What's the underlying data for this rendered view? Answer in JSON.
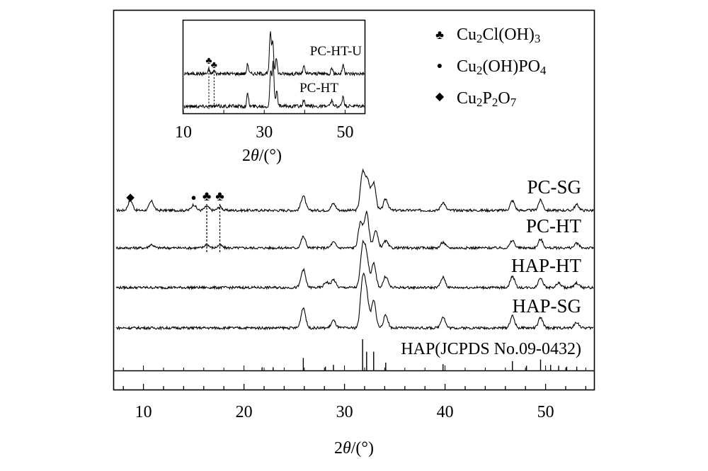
{
  "chart_data": {
    "type": "line",
    "xlabel": "2θ/(°)",
    "ylabel": "",
    "xlim": [
      7,
      55
    ],
    "xticks": [
      10,
      20,
      30,
      40,
      50
    ],
    "legend": {
      "placement": "top-right",
      "entries": [
        {
          "symbol": "♣",
          "label": "Cu2Cl(OH)3"
        },
        {
          "symbol": "●",
          "label": "Cu2(OH)PO4"
        },
        {
          "symbol": "◆",
          "label": "Cu2P2O7"
        }
      ]
    },
    "series": [
      {
        "name": "PC-SG",
        "peaks": [
          [
            8.7,
            0.18
          ],
          [
            10.8,
            0.16
          ],
          [
            15.0,
            0.1
          ],
          [
            16.3,
            0.07
          ],
          [
            17.6,
            0.06
          ],
          [
            25.9,
            0.26
          ],
          [
            28.9,
            0.12
          ],
          [
            31.8,
            0.66
          ],
          [
            32.3,
            0.52
          ],
          [
            32.9,
            0.48
          ],
          [
            34.1,
            0.2
          ],
          [
            39.8,
            0.14
          ],
          [
            46.7,
            0.17
          ],
          [
            49.5,
            0.18
          ],
          [
            53.1,
            0.1
          ]
        ]
      },
      {
        "name": "PC-HT",
        "peaks": [
          [
            10.8,
            0.06
          ],
          [
            16.3,
            0.06
          ],
          [
            17.6,
            0.05
          ],
          [
            25.9,
            0.2
          ],
          [
            28.9,
            0.1
          ],
          [
            31.6,
            0.45
          ],
          [
            32.2,
            0.62
          ],
          [
            33.1,
            0.3
          ],
          [
            34.1,
            0.12
          ],
          [
            39.8,
            0.1
          ],
          [
            46.7,
            0.13
          ],
          [
            49.5,
            0.15
          ],
          [
            53.1,
            0.08
          ]
        ]
      },
      {
        "name": "HAP-HT",
        "peaks": [
          [
            25.9,
            0.32
          ],
          [
            28.2,
            0.1
          ],
          [
            28.9,
            0.14
          ],
          [
            31.8,
            0.68
          ],
          [
            32.2,
            0.52
          ],
          [
            32.9,
            0.42
          ],
          [
            34.1,
            0.2
          ],
          [
            39.8,
            0.18
          ],
          [
            46.7,
            0.2
          ],
          [
            49.5,
            0.18
          ],
          [
            51.3,
            0.08
          ],
          [
            53.1,
            0.08
          ]
        ]
      },
      {
        "name": "HAP-SG",
        "peaks": [
          [
            25.9,
            0.36
          ],
          [
            28.9,
            0.13
          ],
          [
            31.8,
            0.82
          ],
          [
            32.2,
            0.56
          ],
          [
            32.9,
            0.48
          ],
          [
            34.1,
            0.22
          ],
          [
            39.8,
            0.2
          ],
          [
            46.7,
            0.21
          ],
          [
            49.5,
            0.18
          ],
          [
            53.1,
            0.1
          ]
        ]
      }
    ],
    "reference": {
      "name": "HAP(JCPDS No.09-0432)",
      "lines": [
        [
          21.8,
          0.1
        ],
        [
          22.9,
          0.1
        ],
        [
          25.9,
          0.4
        ],
        [
          28.1,
          0.12
        ],
        [
          28.9,
          0.18
        ],
        [
          31.8,
          1.0
        ],
        [
          32.2,
          0.6
        ],
        [
          32.9,
          0.6
        ],
        [
          34.1,
          0.25
        ],
        [
          39.8,
          0.2
        ],
        [
          46.7,
          0.3
        ],
        [
          48.1,
          0.15
        ],
        [
          49.5,
          0.35
        ],
        [
          50.5,
          0.18
        ],
        [
          51.3,
          0.15
        ],
        [
          52.1,
          0.12
        ],
        [
          53.1,
          0.12
        ]
      ]
    },
    "markers": [
      {
        "series": "PC-SG",
        "symbol": "◆",
        "x": 8.7
      },
      {
        "series": "PC-SG",
        "symbol": "●",
        "x": 15.0
      },
      {
        "series": "PC-SG",
        "symbol": "♣",
        "x": 16.3
      },
      {
        "series": "PC-SG",
        "symbol": "♣",
        "x": 17.6
      }
    ],
    "inset": {
      "xlabel": "2θ/(°)",
      "xlim": [
        10,
        55
      ],
      "xticks": [
        10,
        30,
        50
      ],
      "series": [
        {
          "name": "PC-HT-U",
          "peaks": [
            [
              16.3,
              0.08
            ],
            [
              17.6,
              0.07
            ],
            [
              25.9,
              0.2
            ],
            [
              31.5,
              0.8
            ],
            [
              32.1,
              0.65
            ],
            [
              33.0,
              0.3
            ],
            [
              39.8,
              0.14
            ],
            [
              46.7,
              0.12
            ],
            [
              49.5,
              0.18
            ]
          ]
        },
        {
          "name": "PC-HT",
          "peaks": [
            [
              25.9,
              0.25
            ],
            [
              31.6,
              0.7
            ],
            [
              32.2,
              0.85
            ],
            [
              33.1,
              0.3
            ],
            [
              39.8,
              0.12
            ],
            [
              46.7,
              0.12
            ],
            [
              49.5,
              0.2
            ]
          ]
        }
      ],
      "markers": [
        {
          "series": "PC-HT-U",
          "symbol": "♣",
          "x": 16.3
        },
        {
          "series": "PC-HT-U",
          "symbol": "♣",
          "x": 17.6
        }
      ]
    }
  }
}
